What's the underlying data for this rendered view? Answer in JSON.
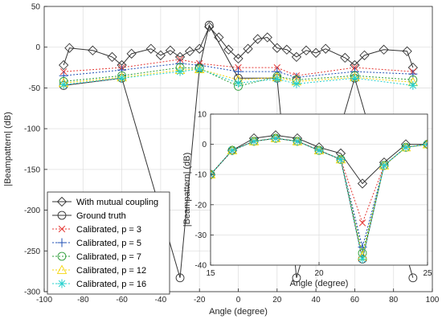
{
  "chart_data": [
    {
      "type": "line",
      "xlabel": "Angle (degree)",
      "ylabel": "|Beampattern| (dB)",
      "xlim": [
        -100,
        100
      ],
      "ylim": [
        -300,
        50
      ],
      "xticks": [
        -100,
        -80,
        -60,
        -40,
        -20,
        0,
        20,
        40,
        60,
        80,
        100
      ],
      "yticks": [
        50,
        0,
        -50,
        -100,
        -150,
        -200,
        -250,
        -300
      ],
      "grid": true,
      "legend_position": "bottom-left",
      "series": [
        {
          "name": "With mutual coupling",
          "color": "#333333",
          "marker": "diamond",
          "x": [
            -90,
            -87,
            -75,
            -65,
            -60,
            -55,
            -45,
            -40,
            -35,
            -30,
            -25,
            -20,
            -15,
            -10,
            -5,
            0,
            5,
            10,
            15,
            20,
            25,
            30,
            35,
            40,
            45,
            55,
            60,
            65,
            75,
            87,
            90
          ],
          "y": [
            -22,
            -1,
            -4,
            -12,
            -22,
            -8,
            -2,
            -10,
            -4,
            -12,
            -5,
            -2,
            25,
            12,
            -3,
            -14,
            -2,
            10,
            12,
            -1,
            -3,
            -12,
            -4,
            -7,
            -2,
            -13,
            -22,
            -10,
            -3,
            -5,
            -25
          ]
        },
        {
          "name": "Ground truth",
          "color": "#333333",
          "marker": "circle",
          "x": [
            -90,
            -60,
            -30,
            -20,
            -15,
            0,
            20,
            30,
            60,
            90
          ],
          "y": [
            -47,
            -38,
            -283,
            -25,
            27,
            -38,
            -38,
            -283,
            -38,
            -283
          ]
        },
        {
          "name": "Calibrated, p = 3",
          "color": "#e53935",
          "marker": "x",
          "x": [
            -90,
            -60,
            -30,
            -20,
            0,
            20,
            30,
            60,
            90
          ],
          "y": [
            -30,
            -25,
            -15,
            -20,
            -25,
            -25,
            -35,
            -25,
            -30
          ]
        },
        {
          "name": "Calibrated, p = 5",
          "color": "#1f4fb5",
          "marker": "plus",
          "x": [
            -90,
            -60,
            -30,
            -20,
            0,
            20,
            30,
            60,
            90
          ],
          "y": [
            -35,
            -28,
            -20,
            -22,
            -30,
            -30,
            -37,
            -30,
            -33
          ]
        },
        {
          "name": "Calibrated, p = 7",
          "color": "#2e9d3a",
          "marker": "circle",
          "x": [
            -90,
            -60,
            -30,
            -20,
            0,
            20,
            30,
            60,
            90
          ],
          "y": [
            -42,
            -35,
            -25,
            -26,
            -48,
            -36,
            -40,
            -35,
            -40
          ]
        },
        {
          "name": "Calibrated, p = 12",
          "color": "#f5d60a",
          "marker": "triangle",
          "x": [
            -90,
            -60,
            -30,
            -20,
            0,
            20,
            30,
            60,
            90
          ],
          "y": [
            -44,
            -37,
            -28,
            -27,
            -40,
            -37,
            -42,
            -37,
            -43
          ]
        },
        {
          "name": "Calibrated, p = 16",
          "color": "#26d0ce",
          "marker": "asterisk",
          "x": [
            -90,
            -60,
            -30,
            -20,
            0,
            20,
            30,
            60,
            90
          ],
          "y": [
            -46,
            -38,
            -30,
            -27,
            -44,
            -39,
            -45,
            -38,
            -47
          ]
        }
      ]
    },
    {
      "type": "line",
      "inset": true,
      "xlabel": "Angle (degree)",
      "ylabel": "|Beampattern| (dB)",
      "xlim": [
        15,
        25
      ],
      "ylim": [
        -40,
        10
      ],
      "xticks": [
        15,
        20,
        25
      ],
      "yticks": [
        10,
        0,
        -10,
        -20,
        -30,
        -40
      ],
      "grid": true,
      "series": [
        {
          "name": "With mutual coupling",
          "color": "#333333",
          "marker": "diamond",
          "x": [
            15,
            16,
            17,
            18,
            19,
            20,
            21,
            22,
            23,
            24,
            25
          ],
          "y": [
            -10,
            -2,
            2,
            3,
            2,
            -1,
            -3,
            -13,
            -6,
            0,
            0
          ]
        },
        {
          "name": "Ground truth",
          "color": "#333333",
          "marker": "circle",
          "x": [
            15,
            16,
            17,
            18,
            19,
            20,
            21,
            22,
            23,
            24,
            25
          ],
          "y": [
            -10,
            -2,
            1,
            2,
            1,
            -2,
            -5,
            -38,
            -7,
            -1,
            0
          ]
        },
        {
          "name": "Calibrated, p = 3",
          "color": "#e53935",
          "marker": "x",
          "x": [
            15,
            16,
            17,
            18,
            19,
            20,
            21,
            22,
            23,
            24,
            25
          ],
          "y": [
            -10,
            -2,
            1,
            2,
            1,
            -2,
            -5,
            -26,
            -7,
            -1,
            0
          ]
        },
        {
          "name": "Calibrated, p = 5",
          "color": "#1f4fb5",
          "marker": "plus",
          "x": [
            15,
            16,
            17,
            18,
            19,
            20,
            21,
            22,
            23,
            24,
            25
          ],
          "y": [
            -10,
            -2,
            1,
            2,
            1,
            -2,
            -5,
            -34,
            -7,
            -1,
            0
          ]
        },
        {
          "name": "Calibrated, p = 7",
          "color": "#2e9d3a",
          "marker": "circle",
          "x": [
            15,
            16,
            17,
            18,
            19,
            20,
            21,
            22,
            23,
            24,
            25
          ],
          "y": [
            -10,
            -2,
            1,
            2,
            1,
            -2,
            -5,
            -36,
            -7,
            -1,
            0
          ]
        },
        {
          "name": "Calibrated, p = 12",
          "color": "#f5d60a",
          "marker": "triangle",
          "x": [
            15,
            16,
            17,
            18,
            19,
            20,
            21,
            22,
            23,
            24,
            25
          ],
          "y": [
            -10,
            -2,
            1,
            2,
            1,
            -2,
            -5,
            -37,
            -7,
            -1,
            0
          ]
        },
        {
          "name": "Calibrated, p = 16",
          "color": "#26d0ce",
          "marker": "asterisk",
          "x": [
            15,
            16,
            17,
            18,
            19,
            20,
            21,
            22,
            23,
            24,
            25
          ],
          "y": [
            -10,
            -2,
            1,
            2,
            1,
            -2,
            -5,
            -38,
            -7,
            -1,
            0
          ]
        }
      ]
    }
  ]
}
